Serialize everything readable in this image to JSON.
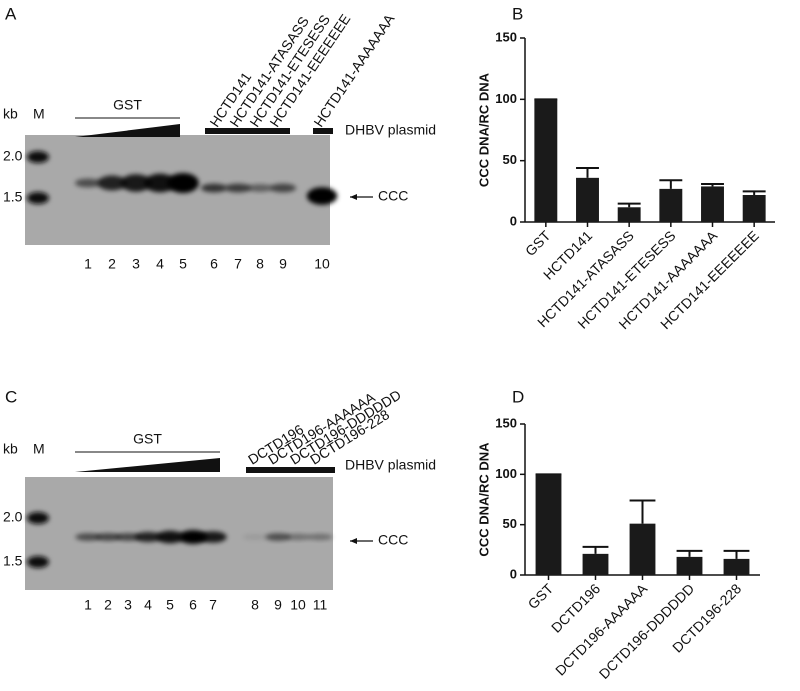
{
  "chart_data": [
    {
      "type": "bar",
      "panel_label": "B",
      "ylabel": "CCC DNA/RC DNA",
      "categories": [
        "GST",
        "HCTD141",
        "HCTD141-ATASASS",
        "HCTD141-ETESESS",
        "HCTD141-AAAAAAA",
        "HCTD141-EEEEEEE"
      ],
      "values": [
        100,
        36,
        12,
        27,
        29,
        22
      ],
      "errors": [
        0,
        8,
        3,
        7,
        2,
        3
      ],
      "color": "#1a1a1a",
      "ylim": [
        0,
        150
      ],
      "yticks": [
        0,
        50,
        100,
        150
      ]
    },
    {
      "type": "bar",
      "panel_label": "D",
      "ylabel": "CCC DNA/RC DNA",
      "categories": [
        "GST",
        "DCTD196",
        "DCTD196-AAAAAA",
        "DCTD196-DDDDDD",
        "DCTD196-228"
      ],
      "values": [
        100,
        21,
        51,
        18,
        16
      ],
      "errors": [
        0,
        7,
        23,
        6,
        8
      ],
      "color": "#1a1a1a",
      "ylim": [
        0,
        150
      ],
      "yticks": [
        0,
        50,
        100,
        150
      ]
    }
  ],
  "gels": [
    {
      "panel_label": "A",
      "kb": "kb",
      "marker_lane": "M",
      "markers": [
        "2.0",
        "1.5"
      ],
      "group_label": "GST",
      "sample_labels": [
        "HCTD141",
        "HCTD141-ATASASS",
        "HCTD141-ETESESS",
        "HCTD141-EEEEEEE",
        "HCTD141-AAAAAAA"
      ],
      "plasmid_label": "DHBV plasmid",
      "band_label": "CCC",
      "lanes": [
        "1",
        "2",
        "3",
        "4",
        "5",
        "6",
        "7",
        "8",
        "9",
        "10"
      ]
    },
    {
      "panel_label": "C",
      "kb": "kb",
      "marker_lane": "M",
      "markers": [
        "2.0",
        "1.5"
      ],
      "group_label": "GST",
      "sample_labels": [
        "DCTD196",
        "DCTD196-AAAAAA",
        "DCTD196-DDDDDD",
        "DCTD196-228"
      ],
      "plasmid_label": "DHBV plasmid",
      "band_label": "CCC",
      "lanes": [
        "1",
        "2",
        "3",
        "4",
        "5",
        "6",
        "7",
        "8",
        "9",
        "10",
        "11"
      ]
    }
  ]
}
